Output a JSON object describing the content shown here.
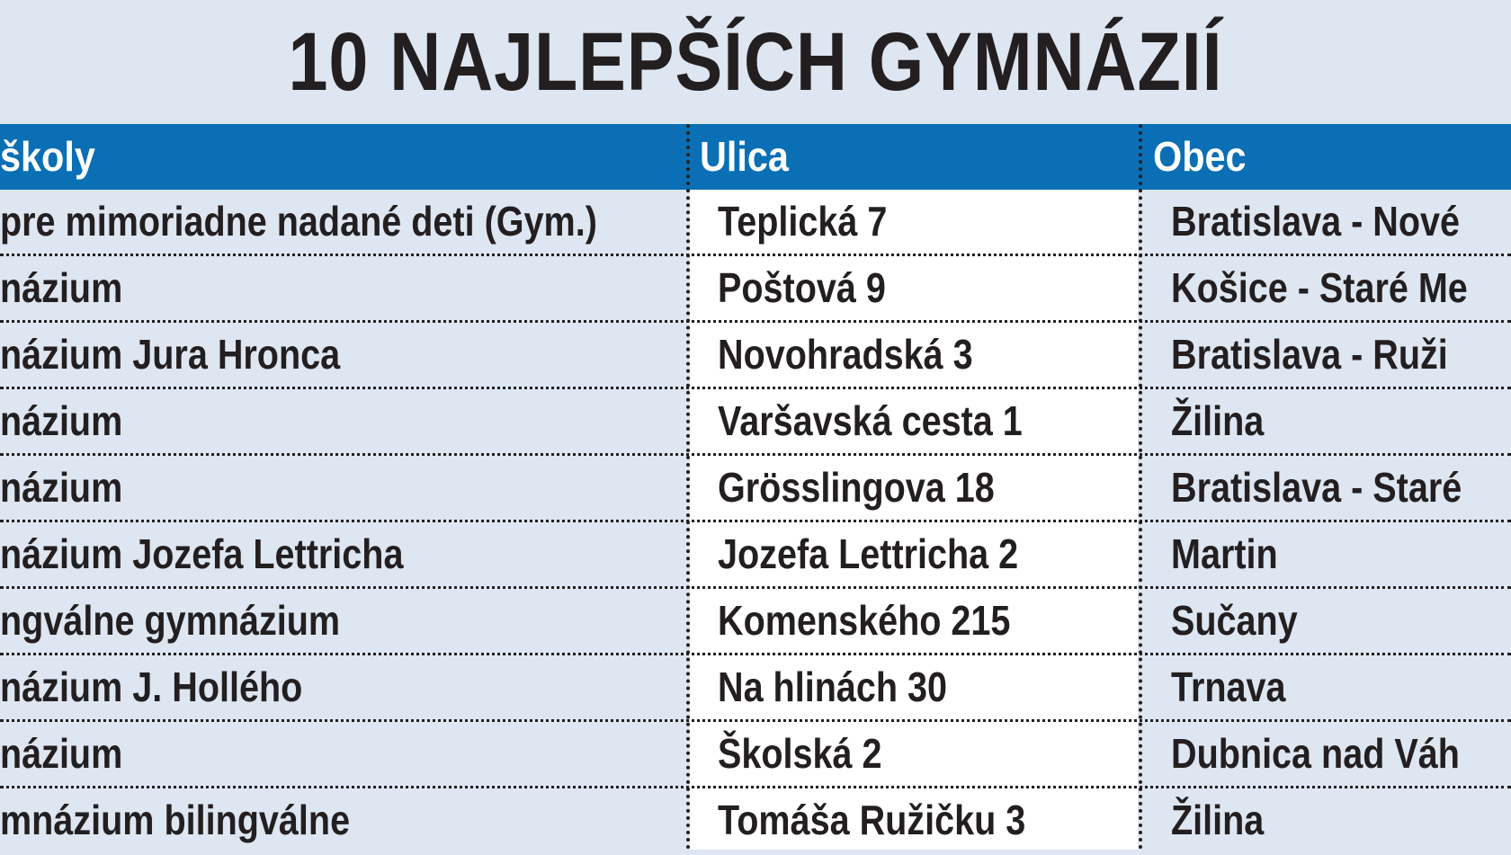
{
  "title": "10 NAJLEPŠÍCH GYMNÁZIÍ",
  "columns": {
    "name": "školy",
    "street": "Ulica",
    "city": "Obec"
  },
  "rows": [
    {
      "name": "pre mimoriadne nadané deti (Gym.)",
      "street": "Teplická 7",
      "city": "Bratislava - Nové"
    },
    {
      "name": "názium",
      "street": "Poštová 9",
      "city": "Košice - Staré Me"
    },
    {
      "name": "názium Jura Hronca",
      "street": "Novohradská 3",
      "city": "Bratislava - Ruži"
    },
    {
      "name": "názium",
      "street": "Varšavská cesta 1",
      "city": "Žilina"
    },
    {
      "name": "názium",
      "street": "Grösslingova 18",
      "city": "Bratislava - Staré"
    },
    {
      "name": "názium Jozefa Lettricha",
      "street": "Jozefa Lettricha 2",
      "city": "Martin"
    },
    {
      "name": "ngválne gymnázium",
      "street": "Komenského 215",
      "city": "Sučany"
    },
    {
      "name": "názium J. Hollého",
      "street": "Na hlinách 30",
      "city": "Trnava"
    },
    {
      "name": "názium",
      "street": "Školská 2",
      "city": "Dubnica nad Váh"
    },
    {
      "name": "mnázium bilingválne",
      "street": "Tomáša Ružičku 3",
      "city": "Žilina"
    }
  ],
  "colors": {
    "header_bg": "#0a6fb5",
    "page_bg": "#dde6f1",
    "street_col_bg": "#ffffff",
    "text": "#231f20"
  }
}
